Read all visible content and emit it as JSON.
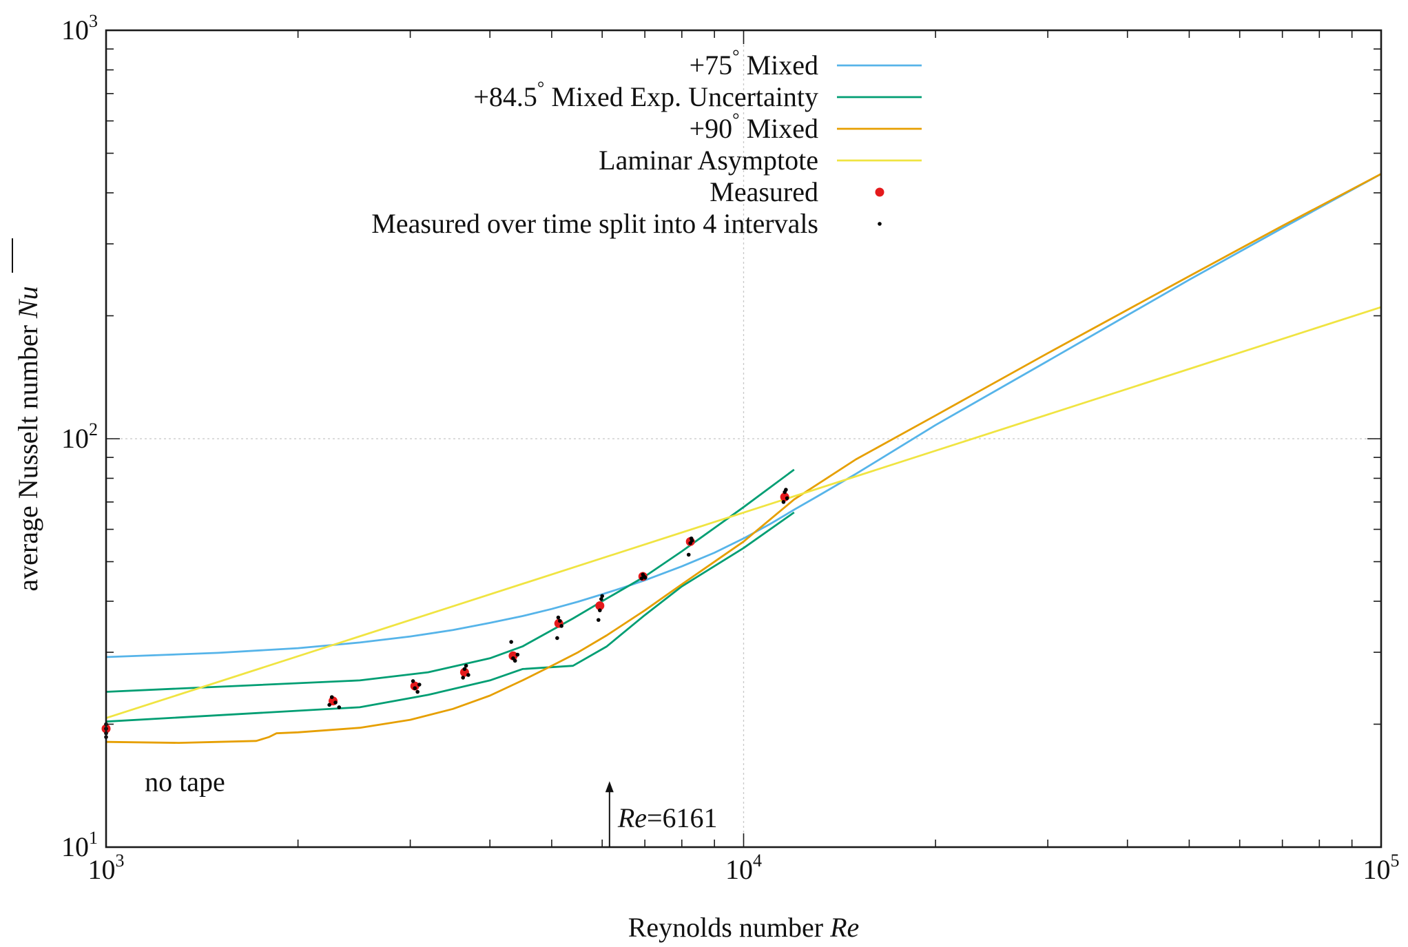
{
  "chart_data": {
    "type": "line",
    "title": "",
    "xlabel": "Reynolds number",
    "xlabel_symbol": "Re",
    "ylabel": "average Nusselt number",
    "ylabel_symbol": "Nu",
    "xscale": "log",
    "yscale": "log",
    "xlim": [
      1000,
      100000
    ],
    "ylim": [
      10,
      1000
    ],
    "grid": "x=10^4 and y=10^2 only",
    "legend_position": "top-left",
    "x_ticks": [
      {
        "value": 1000,
        "label_base": "10",
        "label_exp": "3"
      },
      {
        "value": 10000,
        "label_base": "10",
        "label_exp": "4"
      },
      {
        "value": 100000,
        "label_base": "10",
        "label_exp": "5"
      }
    ],
    "y_ticks": [
      {
        "value": 10,
        "label_base": "10",
        "label_exp": "1"
      },
      {
        "value": 100,
        "label_base": "10",
        "label_exp": "2"
      },
      {
        "value": 1000,
        "label_base": "10",
        "label_exp": "3"
      }
    ],
    "series": [
      {
        "name": "+75° Mixed",
        "label_parts": [
          "+75",
          "°",
          " Mixed"
        ],
        "color": "#56b4e9",
        "kind": "line",
        "x": [
          1000,
          1500,
          2000,
          2500,
          3000,
          3500,
          4000,
          4500,
          5000,
          5500,
          6000,
          6500,
          7000,
          8000,
          9000,
          10000,
          11000,
          12000,
          13000,
          15000,
          20000,
          30000,
          50000,
          70000,
          100000
        ],
        "y": [
          29.2,
          29.9,
          30.7,
          31.7,
          32.8,
          34.0,
          35.4,
          36.8,
          38.3,
          39.9,
          41.6,
          43.3,
          45.0,
          48.7,
          52.6,
          57.0,
          61.8,
          67.0,
          72.0,
          82.0,
          108.0,
          155.0,
          245.0,
          328.0,
          445.0
        ]
      },
      {
        "name": "+84.5° Mixed Exp. Uncertainty",
        "label_parts": [
          "+84.5",
          "°",
          " Mixed Exp. Uncertainty"
        ],
        "color": "#009e73",
        "kind": "band",
        "lines": [
          {
            "x": [
              1000,
              2500,
              3200,
              4000,
              4500,
              5400,
              6100,
              7000,
              8000,
              10000,
              12000
            ],
            "y": [
              24.0,
              25.6,
              26.8,
              29.0,
              31.0,
              36.3,
              40.6,
              46.0,
              53.0,
              68.0,
              84.0
            ]
          },
          {
            "x": [
              1000,
              2500,
              3200,
              4000,
              4500,
              5400,
              6100,
              7000,
              8000,
              10000,
              12000
            ],
            "y": [
              20.3,
              22.0,
              23.6,
              25.6,
              27.3,
              27.8,
              31.0,
              37.0,
              43.5,
              54.0,
              66.0
            ]
          }
        ]
      },
      {
        "name": "+90° Mixed",
        "label_parts": [
          "+90",
          "°",
          " Mixed"
        ],
        "color": "#e69f00",
        "kind": "line",
        "x": [
          1000,
          1300,
          1500,
          1720,
          1800,
          1850,
          2000,
          2500,
          3000,
          3500,
          4000,
          4500,
          5000,
          5500,
          6100,
          7000,
          8000,
          10000,
          12000,
          13000,
          15000,
          20000,
          30000,
          50000,
          70000,
          100000
        ],
        "y": [
          18.1,
          18.0,
          18.1,
          18.2,
          18.6,
          19.0,
          19.1,
          19.6,
          20.5,
          21.8,
          23.5,
          25.6,
          27.8,
          30.0,
          33.0,
          38.0,
          44.0,
          56.0,
          71.0,
          77.0,
          89.0,
          114.0,
          162.0,
          250.0,
          332.0,
          445.0
        ]
      },
      {
        "name": "Laminar Asymptote",
        "label_parts": [
          "Laminar Asymptote"
        ],
        "color": "#f0e442",
        "kind": "line",
        "x": [
          1000,
          100000
        ],
        "y": [
          20.7,
          210.0
        ]
      },
      {
        "name": "Measured",
        "label_parts": [
          "Measured"
        ],
        "color": "#e41a1c",
        "kind": "points",
        "marker_size": 6.5,
        "x": [
          1000,
          2270,
          3050,
          3650,
          4350,
          5130,
          5950,
          6950,
          8250,
          11600
        ],
        "y": [
          19.5,
          22.8,
          24.8,
          26.8,
          29.4,
          35.3,
          39.0,
          46.0,
          56.0,
          72.0
        ]
      },
      {
        "name": "Measured over time split into 4 intervals",
        "label_parts": [
          "Measured over time split into 4 intervals"
        ],
        "color": "#000000",
        "kind": "points",
        "marker_size": 2.8,
        "x": [
          1000,
          1000,
          1000,
          1000,
          2240,
          2260,
          2290,
          2320,
          3030,
          3050,
          3080,
          3100,
          3630,
          3650,
          3670,
          3700,
          4320,
          4350,
          4380,
          4420,
          5100,
          5120,
          5150,
          5180,
          5920,
          5950,
          5980,
          6000,
          6920,
          6950,
          6980,
          7010,
          8200,
          8250,
          8280,
          8300,
          11550,
          11600,
          11650,
          11700
        ],
        "y": [
          19.0,
          19.5,
          20.0,
          18.6,
          22.3,
          23.3,
          22.6,
          22.0,
          25.5,
          24.5,
          24.0,
          25.0,
          26.0,
          27.3,
          27.8,
          26.4,
          31.8,
          29.0,
          28.6,
          29.6,
          32.5,
          36.5,
          35.8,
          34.8,
          36.0,
          38.0,
          40.5,
          41.2,
          45.5,
          46.5,
          46.0,
          45.7,
          52.0,
          55.5,
          57.0,
          56.3,
          70.0,
          74.0,
          75.0,
          71.5
        ]
      }
    ],
    "annotations": [
      {
        "text_italic": "Re",
        "text": "=6161",
        "x": 6161,
        "y_from": 10,
        "y_to": 14.5,
        "kind": "arrow"
      },
      {
        "text": "no tape",
        "x": 1150,
        "y": 14.5,
        "kind": "label"
      }
    ]
  }
}
